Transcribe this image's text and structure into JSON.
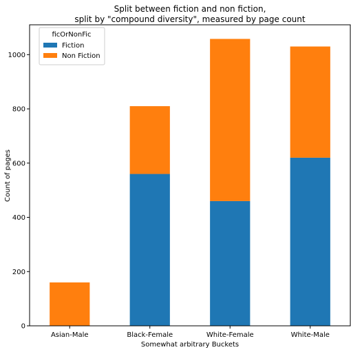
{
  "chart_data": {
    "type": "bar",
    "stacked": true,
    "title_lines": [
      "Split between fiction and non fiction,",
      "split by \"compound diversity\", measured by page count"
    ],
    "xlabel": "Somewhat arbitrary Buckets",
    "ylabel": "Count of pages",
    "categories": [
      "Asian-Male",
      "Black-Female",
      "White-Female",
      "White-Male"
    ],
    "series": [
      {
        "name": "Fiction",
        "color": "#1f77b4",
        "values": [
          0,
          560,
          460,
          620
        ]
      },
      {
        "name": "Non Fiction",
        "color": "#ff7f0e",
        "values": [
          160,
          250,
          598,
          410
        ]
      }
    ],
    "ylim": [
      0,
      1110
    ],
    "yticks": [
      0,
      200,
      400,
      600,
      800,
      1000
    ],
    "grid": false,
    "legend": {
      "title": "ficOrNonFic",
      "placement": "top-left"
    }
  }
}
